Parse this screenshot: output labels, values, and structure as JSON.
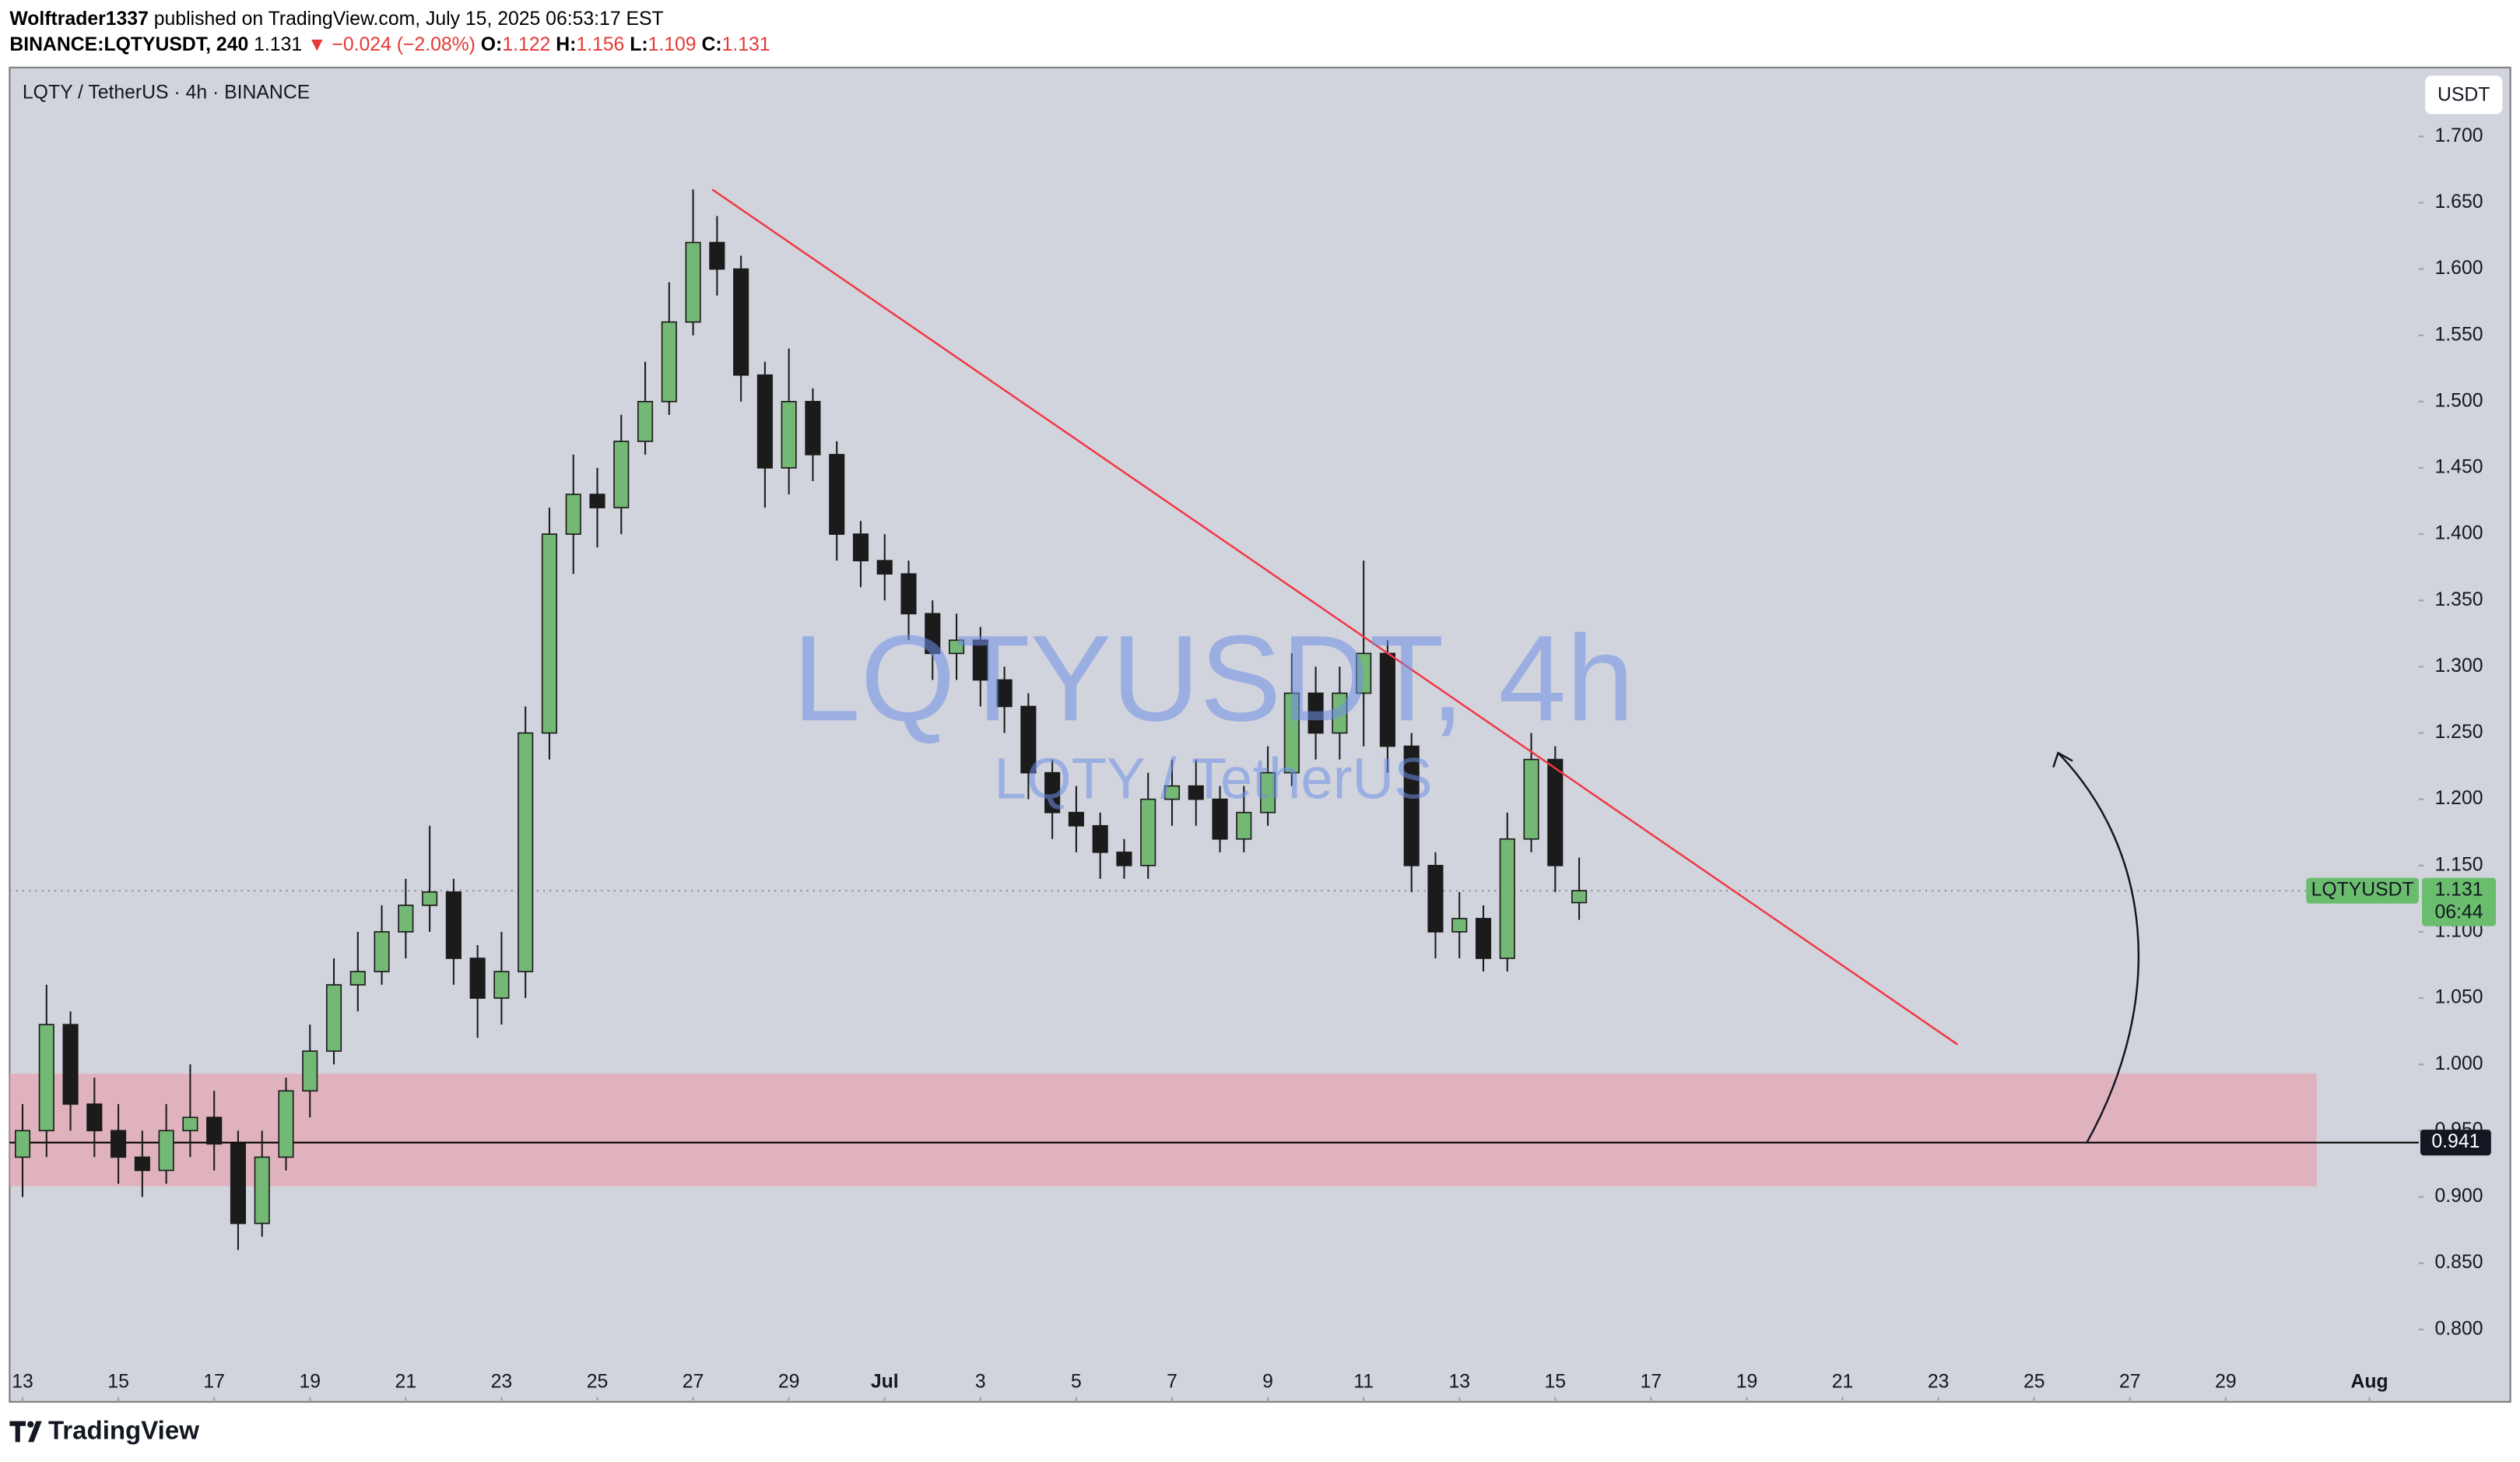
{
  "header": {
    "author": "Wolftrader1337",
    "published": "published on TradingView.com, July 15, 2025 06:53:17 EST",
    "symbol": "BINANCE:LQTYUSDT, 240",
    "change": "▼ −0.024 (−2.08%)",
    "ohlc_labels": [
      "O:",
      "H:",
      "L:",
      "C:"
    ]
  },
  "chart_data": {
    "type": "candlestick",
    "title": "LQTY / TetherUS · 4h · BINANCE",
    "watermark": "LQTYUSDT, 4h",
    "watermark_sub": "LQTY / TetherUS",
    "currency": "USDT",
    "x": [
      13,
      13.5,
      14,
      14.5,
      15,
      15.5,
      16,
      16.5,
      17,
      17.5,
      18,
      18.5,
      19,
      19.5,
      20,
      20.5,
      21,
      21.5,
      22,
      22.5,
      23,
      23.5,
      24,
      24.5,
      25,
      25.5,
      26,
      26.5,
      27,
      27.5,
      28,
      28.5,
      29,
      29.5,
      30,
      30.5,
      31,
      31.5,
      32,
      32.5,
      33,
      33.5,
      34,
      34.5,
      35,
      35.5,
      36,
      36.5,
      37,
      37.5,
      38,
      38.5,
      39,
      39.5,
      40,
      40.5,
      41,
      41.5,
      42,
      42.5,
      43,
      43.5,
      44,
      44.5,
      45,
      45.5
    ],
    "open": [
      0.93,
      0.95,
      1.03,
      0.97,
      0.95,
      0.93,
      0.92,
      0.95,
      0.96,
      0.94,
      0.88,
      0.93,
      0.98,
      1.01,
      1.06,
      1.07,
      1.1,
      1.12,
      1.13,
      1.08,
      1.05,
      1.07,
      1.25,
      1.4,
      1.43,
      1.42,
      1.47,
      1.5,
      1.56,
      1.62,
      1.6,
      1.52,
      1.45,
      1.5,
      1.46,
      1.4,
      1.38,
      1.37,
      1.34,
      1.31,
      1.32,
      1.29,
      1.27,
      1.22,
      1.19,
      1.18,
      1.16,
      1.15,
      1.2,
      1.21,
      1.2,
      1.17,
      1.19,
      1.22,
      1.28,
      1.25,
      1.28,
      1.31,
      1.24,
      1.15,
      1.1,
      1.11,
      1.08,
      1.17,
      1.23,
      1.122
    ],
    "high": [
      0.97,
      1.06,
      1.04,
      0.99,
      0.97,
      0.95,
      0.97,
      1.0,
      0.98,
      0.95,
      0.95,
      0.99,
      1.03,
      1.08,
      1.1,
      1.12,
      1.14,
      1.18,
      1.14,
      1.09,
      1.1,
      1.27,
      1.42,
      1.46,
      1.45,
      1.49,
      1.53,
      1.59,
      1.66,
      1.64,
      1.61,
      1.53,
      1.54,
      1.51,
      1.47,
      1.41,
      1.4,
      1.38,
      1.35,
      1.34,
      1.33,
      1.3,
      1.28,
      1.23,
      1.21,
      1.19,
      1.17,
      1.22,
      1.23,
      1.23,
      1.21,
      1.21,
      1.24,
      1.31,
      1.3,
      1.3,
      1.38,
      1.32,
      1.25,
      1.16,
      1.13,
      1.12,
      1.19,
      1.25,
      1.24,
      1.156
    ],
    "low": [
      0.9,
      0.93,
      0.95,
      0.93,
      0.91,
      0.9,
      0.91,
      0.93,
      0.92,
      0.86,
      0.87,
      0.92,
      0.96,
      1.0,
      1.04,
      1.06,
      1.08,
      1.1,
      1.06,
      1.02,
      1.03,
      1.05,
      1.23,
      1.37,
      1.39,
      1.4,
      1.46,
      1.49,
      1.55,
      1.58,
      1.5,
      1.42,
      1.43,
      1.44,
      1.38,
      1.36,
      1.35,
      1.32,
      1.29,
      1.29,
      1.27,
      1.25,
      1.2,
      1.17,
      1.16,
      1.14,
      1.14,
      1.14,
      1.18,
      1.18,
      1.16,
      1.16,
      1.18,
      1.21,
      1.23,
      1.23,
      1.24,
      1.22,
      1.13,
      1.08,
      1.08,
      1.07,
      1.07,
      1.16,
      1.13,
      1.109
    ],
    "close": [
      0.95,
      1.03,
      0.97,
      0.95,
      0.93,
      0.92,
      0.95,
      0.96,
      0.94,
      0.88,
      0.93,
      0.98,
      1.01,
      1.06,
      1.07,
      1.1,
      1.12,
      1.13,
      1.08,
      1.05,
      1.07,
      1.25,
      1.4,
      1.43,
      1.42,
      1.47,
      1.5,
      1.56,
      1.62,
      1.6,
      1.52,
      1.45,
      1.5,
      1.46,
      1.4,
      1.38,
      1.37,
      1.34,
      1.31,
      1.32,
      1.29,
      1.27,
      1.22,
      1.19,
      1.18,
      1.16,
      1.15,
      1.2,
      1.21,
      1.2,
      1.17,
      1.19,
      1.22,
      1.28,
      1.25,
      1.28,
      1.31,
      1.24,
      1.15,
      1.1,
      1.11,
      1.08,
      1.17,
      1.23,
      1.15,
      1.131
    ],
    "up_color": "#73b874",
    "down_color": "#1b1b1b",
    "xlim": [
      12.73,
      63.03
    ],
    "ylim": [
      0.7454,
      1.752
    ],
    "xticks": [
      13,
      15,
      17,
      19,
      21,
      23,
      25,
      27,
      29,
      {
        "value": 31,
        "label": "Jul"
      },
      {
        "value": 33,
        "label": "3"
      },
      {
        "value": 35,
        "label": "5"
      },
      {
        "value": 37,
        "label": "7"
      },
      {
        "value": 39,
        "label": "9"
      },
      {
        "value": 41,
        "label": "11"
      },
      {
        "value": 43,
        "label": "13"
      },
      {
        "value": 45,
        "label": "15"
      },
      {
        "value": 47,
        "label": "17"
      },
      {
        "value": 49,
        "label": "19"
      },
      {
        "value": 51,
        "label": "21"
      },
      {
        "value": 53,
        "label": "23"
      },
      {
        "value": 55,
        "label": "25"
      },
      {
        "value": 57,
        "label": "27"
      },
      {
        "value": 59,
        "label": "29"
      },
      {
        "value": 62,
        "label": "Aug"
      }
    ],
    "yticks": [
      {
        "value": 0.8,
        "label": "0.800"
      },
      {
        "value": 0.85,
        "label": "0.850"
      },
      {
        "value": 0.9,
        "label": "0.900"
      },
      {
        "value": 0.95,
        "label": "0.950"
      },
      {
        "value": 1.0,
        "label": "1.000"
      },
      {
        "value": 1.05,
        "label": "1.050"
      },
      {
        "value": 1.1,
        "label": "1.100"
      },
      {
        "value": 1.15,
        "label": "1.150"
      },
      {
        "value": 1.2,
        "label": "1.200"
      },
      {
        "value": 1.25,
        "label": "1.250"
      },
      {
        "value": 1.3,
        "label": "1.300"
      },
      {
        "value": 1.35,
        "label": "1.350"
      },
      {
        "value": 1.4,
        "label": "1.400"
      },
      {
        "value": 1.45,
        "label": "1.450"
      },
      {
        "value": 1.5,
        "label": "1.500"
      },
      {
        "value": 1.55,
        "label": "1.550"
      },
      {
        "value": 1.6,
        "label": "1.600"
      },
      {
        "value": 1.65,
        "label": "1.650"
      },
      {
        "value": 1.7,
        "label": "1.700"
      }
    ],
    "price_line": {
      "name": "LQTYUSDT",
      "countdown": "06:44",
      "color": "#6bbd6e"
    },
    "trendline": {
      "x": [
        27.4,
        53.4
      ],
      "y": [
        1.66,
        1.015
      ],
      "color": "#f23645"
    },
    "zone": {
      "x": [
        12.73,
        60.9
      ],
      "y": [
        0.908,
        0.993
      ],
      "color": "#e8a0ae"
    },
    "level": {
      "value": 0.941
    },
    "arrow": {
      "x": [
        56.1,
        55.5
      ],
      "y": [
        0.941,
        1.235
      ]
    }
  },
  "footer": {
    "brand": "TradingView"
  }
}
